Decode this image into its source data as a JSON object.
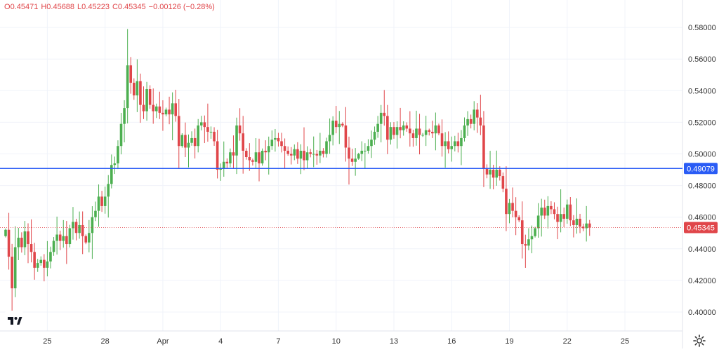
{
  "ohlc": {
    "o_label": "O",
    "o": "0.45471",
    "h_label": "H",
    "h": "0.45688",
    "l_label": "L",
    "l": "0.45223",
    "c_label": "C",
    "c": "0.45345",
    "change": "−0.00126 (−0.28%)"
  },
  "colors": {
    "up": "#4caf50",
    "down": "#e0464a",
    "hline": "#2a5cf5",
    "grid": "#f0f3fa",
    "axis_text": "#333333"
  },
  "chart_data": {
    "type": "candlestick",
    "y_ticks": [
      "0.58000",
      "0.56000",
      "0.54000",
      "0.52000",
      "0.50000",
      "0.48000",
      "0.46000",
      "0.44000",
      "0.42000",
      "0.40000"
    ],
    "x_tick_labels": [
      "25",
      "28",
      "Apr",
      "4",
      "7",
      "10",
      "13",
      "16",
      "19",
      "22",
      "25"
    ],
    "ylim": [
      0.3955,
      0.5985
    ],
    "horizontal_line": {
      "value": 0.49079,
      "label": "0.49079"
    },
    "last_price": {
      "value": 0.45345,
      "label": "0.45345"
    },
    "bars_per_day": 6,
    "day_slots": [
      0,
      18,
      36,
      54,
      72,
      90,
      108,
      126,
      144,
      162,
      180
    ],
    "closes": [
      0.452,
      0.435,
      0.415,
      0.441,
      0.447,
      0.441,
      0.451,
      0.443,
      0.438,
      0.428,
      0.431,
      0.433,
      0.428,
      0.432,
      0.438,
      0.445,
      0.449,
      0.445,
      0.448,
      0.443,
      0.453,
      0.457,
      0.45,
      0.455,
      0.448,
      0.444,
      0.45,
      0.46,
      0.464,
      0.473,
      0.467,
      0.473,
      0.481,
      0.493,
      0.494,
      0.505,
      0.519,
      0.529,
      0.556,
      0.545,
      0.537,
      0.546,
      0.531,
      0.527,
      0.541,
      0.531,
      0.527,
      0.53,
      0.526,
      0.525,
      0.528,
      0.525,
      0.532,
      0.524,
      0.505,
      0.512,
      0.504,
      0.507,
      0.51,
      0.505,
      0.518,
      0.52,
      0.517,
      0.514,
      0.514,
      0.508,
      0.49,
      0.491,
      0.495,
      0.494,
      0.501,
      0.499,
      0.518,
      0.513,
      0.502,
      0.498,
      0.496,
      0.495,
      0.501,
      0.494,
      0.502,
      0.501,
      0.505,
      0.509,
      0.51,
      0.508,
      0.505,
      0.502,
      0.5,
      0.499,
      0.503,
      0.497,
      0.502,
      0.496,
      0.501,
      0.5,
      0.5,
      0.499,
      0.502,
      0.5,
      0.508,
      0.512,
      0.521,
      0.517,
      0.519,
      0.518,
      0.504,
      0.497,
      0.495,
      0.497,
      0.5,
      0.502,
      0.502,
      0.505,
      0.509,
      0.514,
      0.519,
      0.526,
      0.524,
      0.509,
      0.517,
      0.512,
      0.517,
      0.515,
      0.518,
      0.516,
      0.513,
      0.51,
      0.516,
      0.512,
      0.512,
      0.515,
      0.514,
      0.513,
      0.518,
      0.513,
      0.505,
      0.508,
      0.503,
      0.505,
      0.508,
      0.505,
      0.51,
      0.518,
      0.522,
      0.519,
      0.528,
      0.523,
      0.518,
      0.491,
      0.487,
      0.49,
      0.485,
      0.49,
      0.486,
      0.478,
      0.462,
      0.469,
      0.464,
      0.46,
      0.458,
      0.443,
      0.442,
      0.446,
      0.448,
      0.453,
      0.461,
      0.466,
      0.461,
      0.467,
      0.465,
      0.462,
      0.457,
      0.462,
      0.459,
      0.468,
      0.458,
      0.455,
      0.459,
      0.454,
      0.453,
      0.456,
      0.45345
    ]
  }
}
